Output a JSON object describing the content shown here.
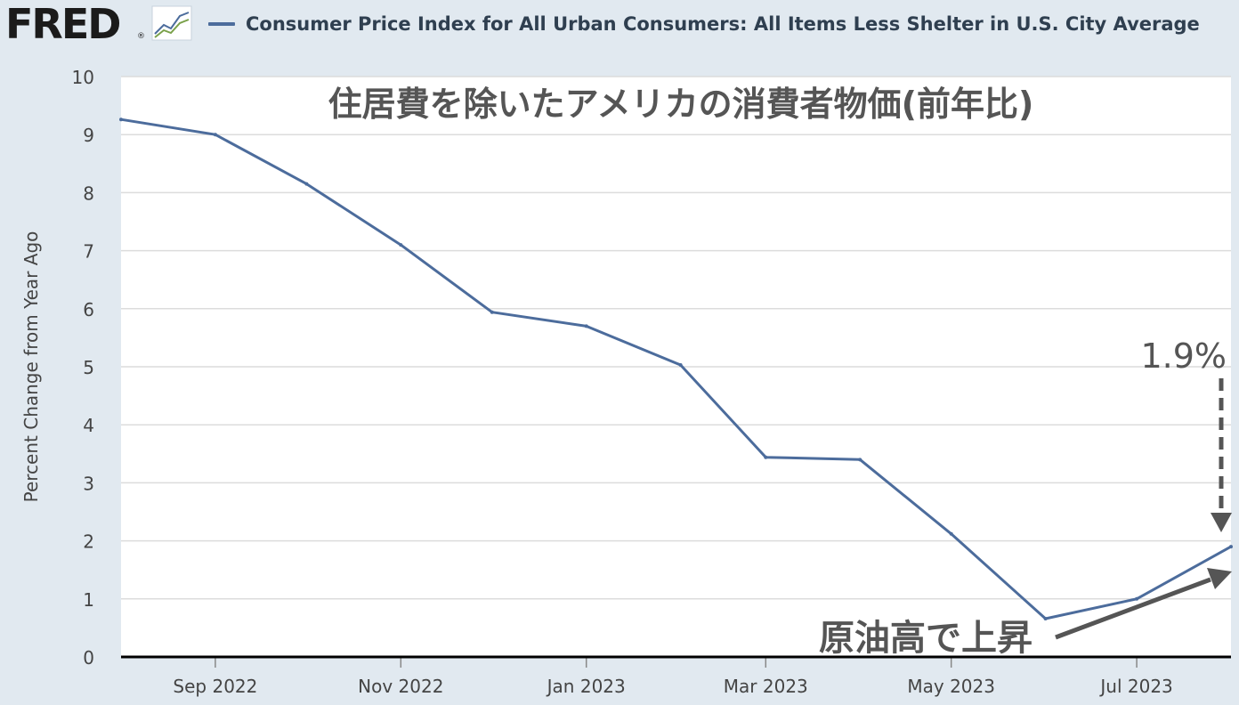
{
  "header": {
    "logo_text": "FRED",
    "logo_reg": "®",
    "legend_label": "Consumer Price Index for All Urban Consumers: All Items Less Shelter in U.S. City Average",
    "legend_color": "#4c6c9c"
  },
  "chart_data": {
    "type": "line",
    "title": "住居費を除いたアメリカの消費者物価(前年比)",
    "ylabel": "Percent Change from Year Ago",
    "xlabel": "",
    "ylim": [
      0,
      10
    ],
    "yticks": [
      "0",
      "1",
      "2",
      "3",
      "4",
      "5",
      "6",
      "7",
      "8",
      "9",
      "10"
    ],
    "xlim": [
      "2022-08-01",
      "2023-08-01"
    ],
    "xticks": [
      {
        "date": "2022-09-01",
        "label": "Sep 2022"
      },
      {
        "date": "2022-11-01",
        "label": "Nov 2022"
      },
      {
        "date": "2023-01-01",
        "label": "Jan 2023"
      },
      {
        "date": "2023-03-01",
        "label": "Mar 2023"
      },
      {
        "date": "2023-05-01",
        "label": "May 2023"
      },
      {
        "date": "2023-07-01",
        "label": "Jul 2023"
      }
    ],
    "grid": true,
    "series": [
      {
        "name": "Consumer Price Index for All Urban Consumers: All Items Less Shelter in U.S. City Average",
        "color": "#4c6c9c",
        "points": [
          {
            "x": "2022-08-01",
            "y": 9.26
          },
          {
            "x": "2022-09-01",
            "y": 9.0
          },
          {
            "x": "2022-10-01",
            "y": 8.15
          },
          {
            "x": "2022-11-01",
            "y": 7.1
          },
          {
            "x": "2022-12-01",
            "y": 5.94
          },
          {
            "x": "2023-01-01",
            "y": 5.7
          },
          {
            "x": "2023-02-01",
            "y": 5.03
          },
          {
            "x": "2023-03-01",
            "y": 3.44
          },
          {
            "x": "2023-04-01",
            "y": 3.4
          },
          {
            "x": "2023-05-01",
            "y": 2.12
          },
          {
            "x": "2023-06-01",
            "y": 0.66
          },
          {
            "x": "2023-07-01",
            "y": 1.0
          },
          {
            "x": "2023-08-01",
            "y": 1.9
          }
        ]
      }
    ],
    "annotations": [
      {
        "text": "1.9%",
        "kind": "dashed-arrow-down",
        "value": 1.9
      },
      {
        "text": "原油高で上昇",
        "kind": "solid-arrow-up-right"
      }
    ]
  }
}
